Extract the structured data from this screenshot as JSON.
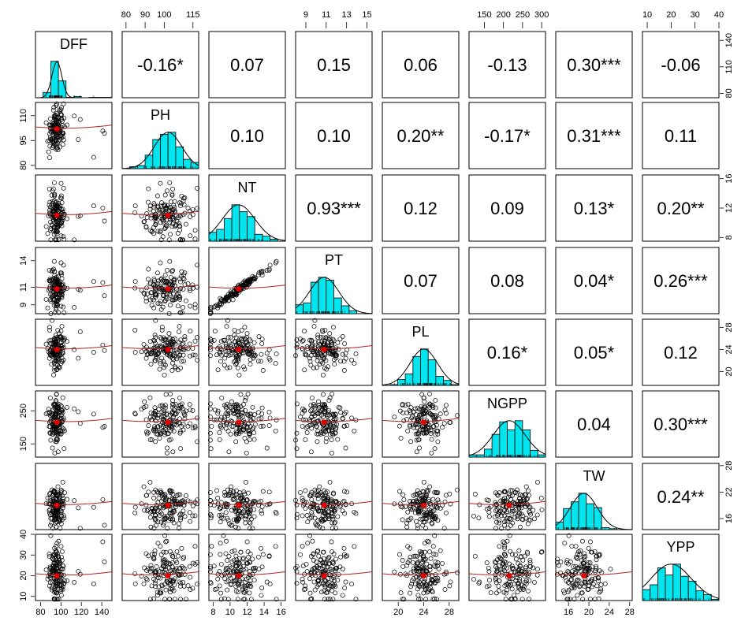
{
  "chart_data": {
    "type": "scatter-matrix",
    "variables": [
      "DFF",
      "PH",
      "NT",
      "PT",
      "PL",
      "NGPP",
      "TW",
      "YPP"
    ],
    "correlations": [
      [
        "",
        "-0.16*",
        "0.07",
        "0.15",
        "0.06",
        "-0.13",
        "0.30***",
        "-0.06"
      ],
      [
        "",
        "",
        "0.10",
        "0.10",
        "0.20**",
        "-0.17*",
        "0.31***",
        "0.11"
      ],
      [
        "",
        "",
        "",
        "0.93***",
        "0.12",
        "0.09",
        "0.13*",
        "0.20**"
      ],
      [
        "",
        "",
        "",
        "",
        "0.07",
        "0.08",
        "0.04*",
        "0.26***"
      ],
      [
        "",
        "",
        "",
        "",
        "",
        "0.16*",
        "0.05*",
        "0.12"
      ],
      [
        "",
        "",
        "",
        "",
        "",
        "",
        "0.04",
        "0.30***"
      ],
      [
        "",
        "",
        "",
        "",
        "",
        "",
        "",
        "0.24**"
      ],
      [
        "",
        "",
        "",
        "",
        "",
        "",
        "",
        ""
      ]
    ],
    "ranges": {
      "DFF": [
        75,
        150
      ],
      "PH": [
        78,
        118
      ],
      "NT": [
        7.5,
        16.5
      ],
      "PT": [
        8,
        15.5
      ],
      "PL": [
        17.5,
        29.5
      ],
      "NGPP": [
        110,
        310
      ],
      "TW": [
        13.5,
        28.5
      ],
      "YPP": [
        8,
        40
      ]
    },
    "means": {
      "DFF": 96,
      "PH": 102,
      "NT": 11,
      "PT": 10.8,
      "PL": 24,
      "NGPP": 215,
      "TW": 19,
      "YPP": 20
    },
    "sds": {
      "DFF": 4,
      "PH": 6,
      "NT": 1.6,
      "PT": 1.2,
      "PL": 1.8,
      "NGPP": 35,
      "TW": 2.2,
      "YPP": 7
    },
    "ticks": {
      "top": {
        "PH": [
          "80",
          "90",
          "100",
          "115"
        ],
        "PT": [
          "9",
          "11",
          "13",
          "15"
        ],
        "NGPP": [
          "150",
          "200",
          "250",
          "300"
        ],
        "YPP": [
          "10",
          "20",
          "30",
          "40"
        ]
      },
      "bottom": {
        "DFF": [
          "80",
          "100",
          "120",
          "140"
        ],
        "NT": [
          "8",
          "10",
          "12",
          "14",
          "16"
        ],
        "PL": [
          "20",
          "24",
          "28"
        ],
        "TW": [
          "16",
          "20",
          "24",
          "28"
        ]
      },
      "left": {
        "PH": [
          "80",
          "95",
          "110"
        ],
        "PT": [
          "9",
          "11",
          "14"
        ],
        "NGPP": [
          "150",
          "250"
        ],
        "YPP": [
          "10",
          "20",
          "30",
          "40"
        ]
      },
      "right": {
        "DFF": [
          "80",
          "110",
          "140"
        ],
        "NT": [
          "8",
          "12",
          "16"
        ],
        "PL": [
          "20",
          "24",
          "28"
        ],
        "TW": [
          "16",
          "22",
          "28"
        ]
      }
    },
    "grid": false,
    "colors": {
      "histogram": "#00e5ee",
      "smooth": "#b22222",
      "center_point": "#e00000",
      "points": "#000000",
      "panel_border": "#000000"
    }
  }
}
